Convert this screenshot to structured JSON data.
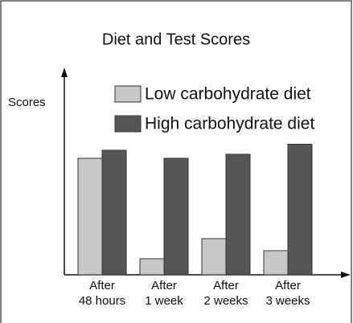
{
  "chart_data": {
    "type": "bar",
    "title": "Diet and Test Scores",
    "y_label": "Scores",
    "categories": [
      "After\n48 hours",
      "After\n1 week",
      "After\n2 weeks",
      "After\n3 weeks"
    ],
    "series": [
      {
        "name": "Low carbohydrate diet",
        "color": "#c8c8c8",
        "values": [
          58,
          8,
          18,
          12
        ]
      },
      {
        "name": "High carbohydrate diet",
        "color": "#555555",
        "values": [
          62,
          58,
          60,
          65
        ]
      }
    ],
    "ylim": [
      0,
      100
    ]
  }
}
